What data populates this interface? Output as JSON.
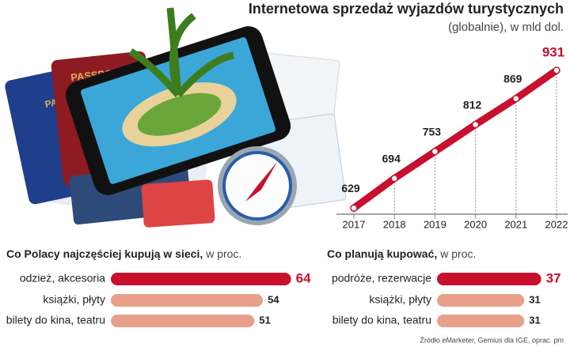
{
  "chart_data": [
    {
      "type": "line",
      "title": "Internetowa sprzedaż wyjazdów turystycznych",
      "subtitle": "(globalnie), w mld dol.",
      "categories": [
        "2017",
        "2018",
        "2019",
        "2020",
        "2021",
        "2022"
      ],
      "values": [
        629,
        694,
        753,
        812,
        869,
        931
      ],
      "color": "#c8102e",
      "ylim": [
        600,
        950
      ]
    },
    {
      "type": "hbar",
      "title": "Co Polacy najczęściej kupują w sieci,",
      "subtitle": "w proc.",
      "categories": [
        "odzież, akcesoria",
        "książki, płyty",
        "bilety do kina, teatru"
      ],
      "values": [
        64,
        54,
        51
      ],
      "colors": [
        "#c8102e",
        "#e8a08a",
        "#e8a08a"
      ],
      "xlim": [
        0,
        70
      ]
    },
    {
      "type": "hbar",
      "title": "Co planują kupować,",
      "subtitle": "w proc.",
      "categories": [
        "podróże, rezerwacje",
        "książki, płyty",
        "bilety do kina, teatru"
      ],
      "values": [
        37,
        31,
        31
      ],
      "colors": [
        "#c8102e",
        "#e8a08a",
        "#e8a08a"
      ],
      "xlim": [
        0,
        70
      ]
    }
  ],
  "illustration": {
    "passport_label": "PASSPORT"
  },
  "source": "Źródło eMarketer, Gemius dla IGE, oprac. pm"
}
